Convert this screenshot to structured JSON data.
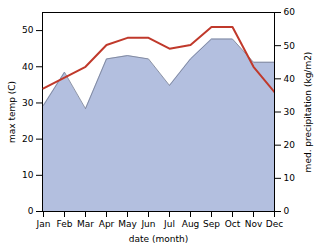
{
  "chart_data": {
    "type": "line",
    "categories": [
      "Jan",
      "Feb",
      "Mar",
      "Apr",
      "May",
      "Jun",
      "Jul",
      "Aug",
      "Sep",
      "Oct",
      "Nov",
      "Dec"
    ],
    "xlabel": "date (month)",
    "ylabel": "max temp (C)",
    "y2label": "med. precipitation (kg/m2)",
    "ylim": [
      0,
      55
    ],
    "yticks": [
      0,
      10,
      20,
      30,
      40,
      50
    ],
    "y2lim": [
      0,
      60
    ],
    "y2ticks": [
      0,
      10,
      20,
      30,
      40,
      50,
      60
    ],
    "grid": false,
    "series": [
      {
        "type": "area",
        "axis": "y2",
        "color": "#b3bfdf",
        "values": [
          32,
          42,
          31,
          46,
          47,
          46,
          38,
          46,
          52,
          52,
          45,
          45
        ]
      },
      {
        "type": "line",
        "color": "#c0392b",
        "values": [
          34,
          37,
          40,
          46,
          48,
          48,
          45,
          46,
          51,
          51,
          40,
          33
        ]
      }
    ]
  }
}
